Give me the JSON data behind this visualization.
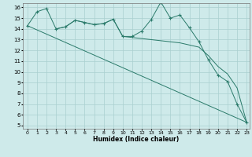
{
  "xlabel": "Humidex (Indice chaleur)",
  "bg_color": "#ceeaea",
  "grid_color": "#aacfcf",
  "line_color": "#2a7a6a",
  "xlim": [
    -0.5,
    23.3
  ],
  "ylim": [
    4.7,
    16.4
  ],
  "xticks": [
    0,
    1,
    2,
    3,
    4,
    5,
    6,
    7,
    8,
    9,
    10,
    11,
    12,
    13,
    14,
    15,
    16,
    17,
    18,
    19,
    20,
    21,
    22,
    23
  ],
  "yticks": [
    5,
    6,
    7,
    8,
    9,
    10,
    11,
    12,
    13,
    14,
    15,
    16
  ],
  "line1_x": [
    0,
    1,
    2,
    3,
    4,
    5,
    6,
    7,
    8,
    9,
    10,
    11,
    12,
    13,
    14,
    15,
    16,
    17,
    18,
    19,
    20,
    21,
    22,
    23
  ],
  "line1_y": [
    14.3,
    15.6,
    15.9,
    14.0,
    14.2,
    14.8,
    14.6,
    14.4,
    14.5,
    14.9,
    13.3,
    13.3,
    13.8,
    14.9,
    16.5,
    15.0,
    15.3,
    14.1,
    12.8,
    11.1,
    9.7,
    9.1,
    7.0,
    5.3
  ],
  "line2_x": [
    0,
    23
  ],
  "line2_y": [
    14.3,
    5.3
  ],
  "line3_x": [
    3,
    4,
    5,
    6,
    7,
    8,
    9,
    10,
    11,
    12,
    13,
    14,
    15,
    16,
    17,
    18,
    19,
    20,
    21,
    22,
    23
  ],
  "line3_y": [
    14.0,
    14.2,
    14.8,
    14.6,
    14.4,
    14.5,
    14.9,
    13.3,
    13.2,
    13.1,
    13.0,
    12.9,
    12.8,
    12.7,
    12.5,
    12.3,
    11.5,
    10.5,
    9.8,
    8.5,
    5.3
  ]
}
